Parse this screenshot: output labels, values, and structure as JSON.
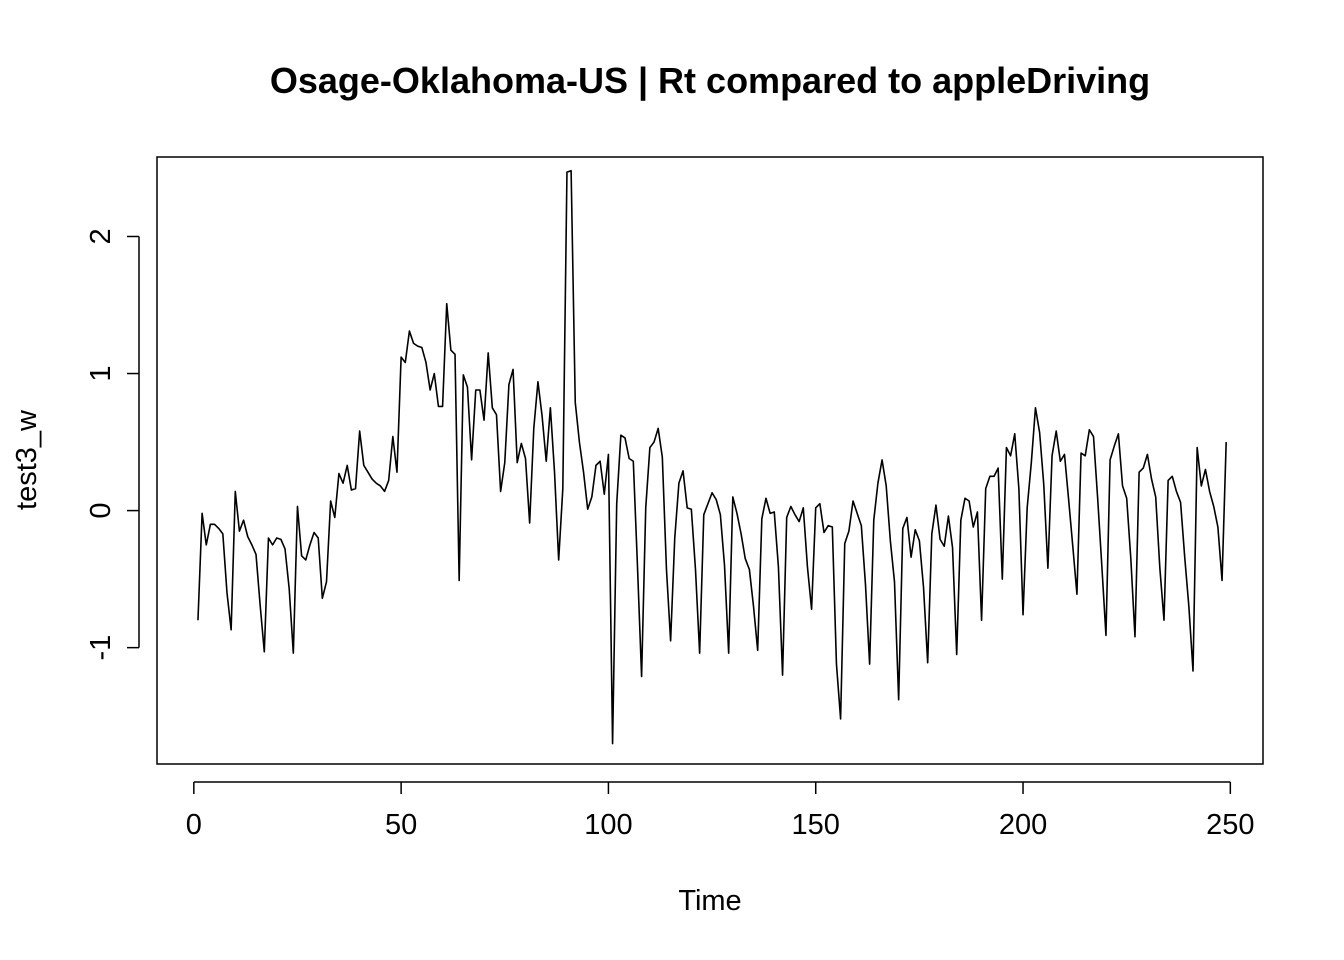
{
  "chart_data": {
    "type": "line",
    "title": "Osage-Oklahoma-US | Rt compared to appleDriving",
    "xlabel": "Time",
    "ylabel": "test3_w",
    "xlim": [
      -8.88,
      257.88
    ],
    "ylim": [
      -1.849,
      2.58
    ],
    "x_ticks": [
      0,
      50,
      100,
      150,
      200,
      250
    ],
    "x_tick_labels": [
      "0",
      "50",
      "100",
      "150",
      "200",
      "250"
    ],
    "y_ticks": [
      -1,
      0,
      1,
      2
    ],
    "y_tick_labels": [
      "-1",
      "0",
      "1",
      "2"
    ],
    "grid": false,
    "box": true,
    "line_color": "#000000",
    "series": [
      {
        "x_start": 1,
        "x_step": 1,
        "values": [
          -0.8,
          -0.02,
          -0.25,
          -0.1,
          -0.1,
          -0.13,
          -0.17,
          -0.6,
          -0.87,
          0.14,
          -0.15,
          -0.07,
          -0.19,
          -0.25,
          -0.32,
          -0.69,
          -1.03,
          -0.2,
          -0.25,
          -0.2,
          -0.21,
          -0.28,
          -0.57,
          -1.04,
          0.03,
          -0.33,
          -0.36,
          -0.25,
          -0.16,
          -0.2,
          -0.64,
          -0.52,
          0.07,
          -0.05,
          0.27,
          0.2,
          0.33,
          0.15,
          0.16,
          0.58,
          0.33,
          0.28,
          0.23,
          0.2,
          0.18,
          0.14,
          0.22,
          0.54,
          0.28,
          1.12,
          1.08,
          1.31,
          1.22,
          1.2,
          1.19,
          1.08,
          0.88,
          1.0,
          0.76,
          0.76,
          1.51,
          1.17,
          1.14,
          -0.51,
          0.99,
          0.9,
          0.37,
          0.88,
          0.88,
          0.66,
          1.15,
          0.75,
          0.7,
          0.14,
          0.35,
          0.92,
          1.03,
          0.35,
          0.49,
          0.38,
          -0.09,
          0.6,
          0.94,
          0.69,
          0.36,
          0.75,
          0.28,
          -0.36,
          0.16,
          2.47,
          2.48,
          0.79,
          0.5,
          0.28,
          0.01,
          0.1,
          0.33,
          0.36,
          0.12,
          0.41,
          -1.7,
          0.05,
          0.55,
          0.53,
          0.38,
          0.36,
          -0.4,
          -1.21,
          0.02,
          0.46,
          0.5,
          0.6,
          0.39,
          -0.43,
          -0.95,
          -0.2,
          0.2,
          0.29,
          0.02,
          0.01,
          -0.43,
          -1.04,
          -0.03,
          0.05,
          0.13,
          0.08,
          -0.03,
          -0.4,
          -1.04,
          0.1,
          -0.02,
          -0.17,
          -0.35,
          -0.43,
          -0.7,
          -1.02,
          -0.06,
          0.09,
          -0.02,
          -0.01,
          -0.41,
          -1.2,
          -0.05,
          0.03,
          -0.03,
          -0.08,
          0.02,
          -0.41,
          -0.72,
          0.02,
          0.05,
          -0.16,
          -0.11,
          -0.12,
          -1.12,
          -1.52,
          -0.24,
          -0.15,
          0.07,
          -0.02,
          -0.11,
          -0.54,
          -1.12,
          -0.07,
          0.2,
          0.37,
          0.18,
          -0.22,
          -0.52,
          -1.38,
          -0.13,
          -0.05,
          -0.34,
          -0.14,
          -0.22,
          -0.56,
          -1.11,
          -0.17,
          0.04,
          -0.21,
          -0.26,
          -0.04,
          -0.27,
          -1.05,
          -0.07,
          0.09,
          0.07,
          -0.12,
          -0.01,
          -0.8,
          0.16,
          0.25,
          0.25,
          0.31,
          -0.5,
          0.46,
          0.4,
          0.56,
          0.16,
          -0.76,
          0.02,
          0.35,
          0.75,
          0.57,
          0.19,
          -0.42,
          0.4,
          0.58,
          0.36,
          0.41,
          0.08,
          -0.26,
          -0.61,
          0.42,
          0.4,
          0.59,
          0.54,
          0.09,
          -0.4,
          -0.91,
          0.37,
          0.47,
          0.56,
          0.18,
          0.09,
          -0.35,
          -0.92,
          0.28,
          0.31,
          0.41,
          0.23,
          0.1,
          -0.42,
          -0.8,
          0.22,
          0.25,
          0.14,
          0.06,
          -0.34,
          -0.7,
          -1.17,
          0.46,
          0.18,
          0.3,
          0.14,
          0.03,
          -0.12,
          -0.51,
          0.5
        ]
      }
    ]
  }
}
